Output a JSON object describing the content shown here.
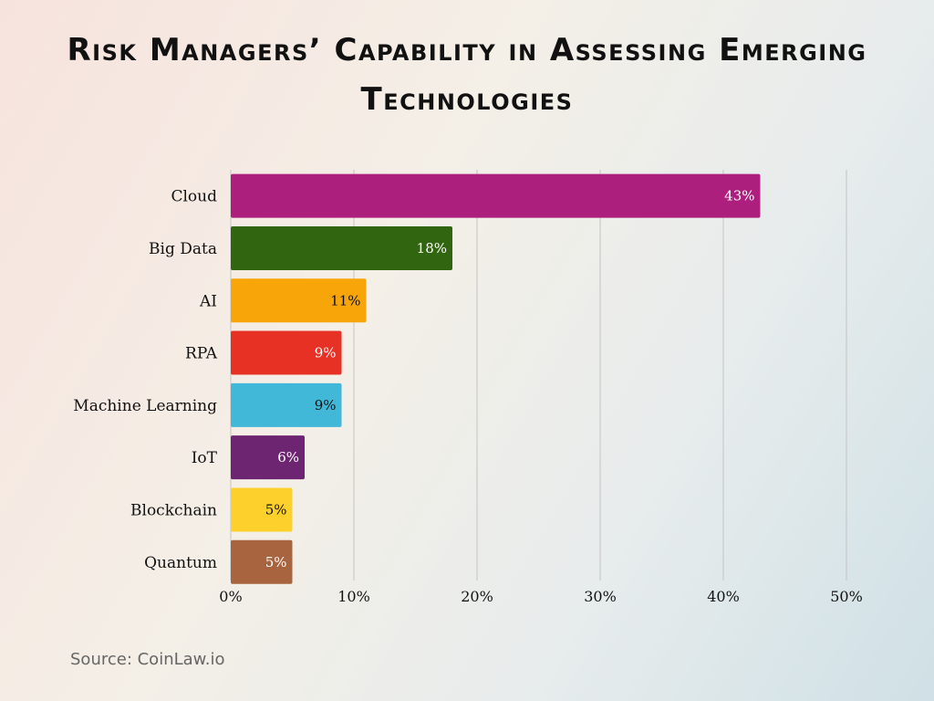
{
  "chart_data": {
    "type": "bar",
    "orientation": "horizontal",
    "title": "Risk Managers’ Capability in Assessing Emerging Technologies",
    "categories": [
      "Cloud",
      "Big Data",
      "AI",
      "RPA",
      "Machine Learning",
      "IoT",
      "Blockchain",
      "Quantum"
    ],
    "values": [
      43,
      18,
      11,
      9,
      9,
      6,
      5,
      5
    ],
    "data_labels": [
      "43%",
      "18%",
      "11%",
      "9%",
      "9%",
      "6%",
      "5%",
      "5%"
    ],
    "colors": [
      "#ad1f7d",
      "#32650f",
      "#f8a50a",
      "#e83125",
      "#41b8d8",
      "#6e2571",
      "#fdd02c",
      "#a8633f"
    ],
    "label_colors": [
      "#ffffff",
      "#ffffff",
      "#111111",
      "#ffffff",
      "#111111",
      "#ffffff",
      "#111111",
      "#ffffff"
    ],
    "xlim": [
      0,
      50
    ],
    "xticks": [
      0,
      10,
      20,
      30,
      40,
      50
    ],
    "xtick_labels": [
      "0%",
      "10%",
      "20%",
      "30%",
      "40%",
      "50%"
    ],
    "grid": "vertical",
    "xlabel": "",
    "ylabel": ""
  },
  "source": "Source: CoinLaw.io"
}
